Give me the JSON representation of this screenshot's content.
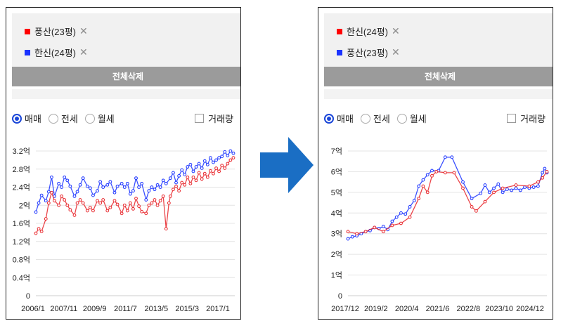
{
  "panels": [
    {
      "filters": [
        {
          "label": "풍산(23평)",
          "color": "#ff0000"
        },
        {
          "label": "한신(24평)",
          "color": "#1a33ff"
        }
      ],
      "clear_label": "전체삭제",
      "radio": [
        "매매",
        "전세",
        "월세"
      ],
      "volume_label": "거래량"
    },
    {
      "filters": [
        {
          "label": "한신(24평)",
          "color": "#ff0000"
        },
        {
          "label": "풍산(23평)",
          "color": "#1a33ff"
        }
      ],
      "clear_label": "전체삭제",
      "radio": [
        "매매",
        "전세",
        "월세"
      ],
      "volume_label": "거래량"
    }
  ],
  "chart_data": [
    {
      "type": "line",
      "xlabels": [
        "2006/1",
        "2007/11",
        "2009/9",
        "2011/7",
        "2013/5",
        "2015/3",
        "2017/1"
      ],
      "yticks": [
        "0",
        "0.4억",
        "0.8억",
        "1.2억",
        "1.6억",
        "2억",
        "2.4억",
        "2.8억",
        "3.2억"
      ],
      "xlim": [
        0,
        139
      ],
      "ylim": [
        0,
        3.2
      ],
      "series": [
        {
          "name": "풍산(23평)",
          "color": "#1a33ff",
          "x": [
            0,
            2,
            4,
            7,
            9,
            11,
            13,
            16,
            18,
            20,
            22,
            24,
            27,
            29,
            31,
            33,
            36,
            38,
            40,
            43,
            45,
            47,
            50,
            52,
            55,
            57,
            60,
            62,
            64,
            66,
            68,
            70,
            72,
            74,
            77,
            79,
            81,
            83,
            85,
            87,
            89,
            91,
            94,
            96,
            98,
            100,
            102,
            104,
            106,
            108,
            110,
            112,
            114,
            116,
            118,
            120,
            122,
            124,
            126,
            128,
            130,
            132,
            134,
            136,
            138
          ],
          "y": [
            1.85,
            2.05,
            2.22,
            2.1,
            2.3,
            2.62,
            2.2,
            2.48,
            2.4,
            2.62,
            2.55,
            2.42,
            2.2,
            2.3,
            2.45,
            2.6,
            2.42,
            2.38,
            2.22,
            2.32,
            2.52,
            2.4,
            2.45,
            2.52,
            2.28,
            2.42,
            2.48,
            2.4,
            2.48,
            2.25,
            2.32,
            2.6,
            2.4,
            2.48,
            2.12,
            2.32,
            2.4,
            2.35,
            2.45,
            2.4,
            2.55,
            2.48,
            2.6,
            2.72,
            2.5,
            2.65,
            2.78,
            2.68,
            2.85,
            2.9,
            2.75,
            2.85,
            2.92,
            2.82,
            2.98,
            2.9,
            3.05,
            2.95,
            3.0,
            3.05,
            3.08,
            3.18,
            3.1,
            3.2,
            3.15
          ]
        },
        {
          "name": "한신(24평)",
          "color": "#e8262b",
          "x": [
            0,
            2,
            4,
            7,
            9,
            11,
            13,
            16,
            18,
            20,
            22,
            24,
            27,
            29,
            31,
            33,
            36,
            38,
            40,
            43,
            45,
            47,
            50,
            52,
            55,
            57,
            60,
            62,
            64,
            66,
            68,
            70,
            72,
            74,
            77,
            79,
            81,
            83,
            85,
            87,
            89,
            91,
            93,
            94,
            96,
            98,
            100,
            102,
            104,
            106,
            108,
            110,
            112,
            114,
            116,
            118,
            120,
            122,
            124,
            126,
            128,
            130,
            132,
            134,
            136,
            138
          ],
          "y": [
            1.38,
            1.48,
            1.42,
            1.7,
            2.05,
            2.28,
            2.1,
            2.0,
            2.2,
            2.12,
            2.0,
            1.9,
            1.78,
            2.05,
            2.12,
            2.05,
            1.88,
            1.95,
            1.88,
            2.1,
            2.05,
            2.12,
            1.88,
            1.95,
            2.1,
            2.02,
            1.82,
            2.0,
            1.88,
            2.05,
            1.92,
            2.15,
            1.98,
            1.86,
            1.82,
            2.0,
            2.05,
            2.12,
            2.0,
            2.1,
            2.2,
            1.48,
            2.05,
            2.2,
            2.35,
            2.42,
            2.32,
            2.5,
            2.45,
            2.62,
            2.48,
            2.62,
            2.55,
            2.72,
            2.58,
            2.7,
            2.62,
            2.76,
            2.7,
            2.82,
            2.75,
            2.88,
            2.82,
            2.92,
            3.0,
            3.05
          ]
        }
      ]
    },
    {
      "type": "line",
      "xlabels": [
        "2017/12",
        "2019/2",
        "2020/4",
        "2021/6",
        "2022/8",
        "2023/10",
        "2024/12"
      ],
      "yticks": [
        "0",
        "1억",
        "2억",
        "3억",
        "4억",
        "5억",
        "6억",
        "7억"
      ],
      "xlim": [
        0,
        90
      ],
      "ylim": [
        0,
        7
      ],
      "series": [
        {
          "name": "풍산(23평)",
          "color": "#1a33ff",
          "x": [
            0,
            2,
            4,
            6,
            8,
            10,
            12,
            14,
            16,
            18,
            20,
            22,
            24,
            26,
            28,
            30,
            32,
            34,
            36,
            38,
            41,
            44,
            47,
            52,
            56,
            60,
            62,
            64,
            66,
            68,
            70,
            72,
            74,
            76,
            78,
            80,
            82,
            84,
            86,
            88,
            89,
            90
          ],
          "y": [
            2.75,
            2.85,
            2.9,
            3.0,
            3.1,
            3.15,
            3.3,
            3.25,
            3.35,
            3.2,
            3.6,
            3.8,
            4.0,
            3.95,
            4.3,
            4.6,
            5.3,
            5.6,
            5.85,
            6.05,
            6.05,
            6.7,
            6.7,
            5.5,
            4.7,
            4.95,
            5.35,
            5.0,
            5.2,
            5.4,
            5.0,
            5.15,
            5.1,
            5.2,
            5.1,
            5.25,
            5.2,
            5.25,
            5.3,
            5.95,
            6.15,
            5.95
          ]
        },
        {
          "name": "한신(24평)",
          "color": "#e8262b",
          "x": [
            0,
            4,
            8,
            12,
            16,
            20,
            24,
            28,
            32,
            34,
            36,
            38,
            40,
            44,
            48,
            52,
            56,
            58,
            62,
            66,
            70,
            76,
            82,
            86,
            88,
            90
          ],
          "y": [
            3.1,
            3.0,
            3.1,
            3.3,
            3.1,
            3.4,
            3.5,
            3.8,
            4.7,
            5.3,
            5.0,
            5.8,
            6.0,
            5.95,
            5.95,
            5.2,
            4.3,
            4.1,
            4.55,
            5.0,
            5.2,
            5.35,
            5.3,
            5.5,
            5.7,
            6.0
          ]
        }
      ]
    }
  ]
}
